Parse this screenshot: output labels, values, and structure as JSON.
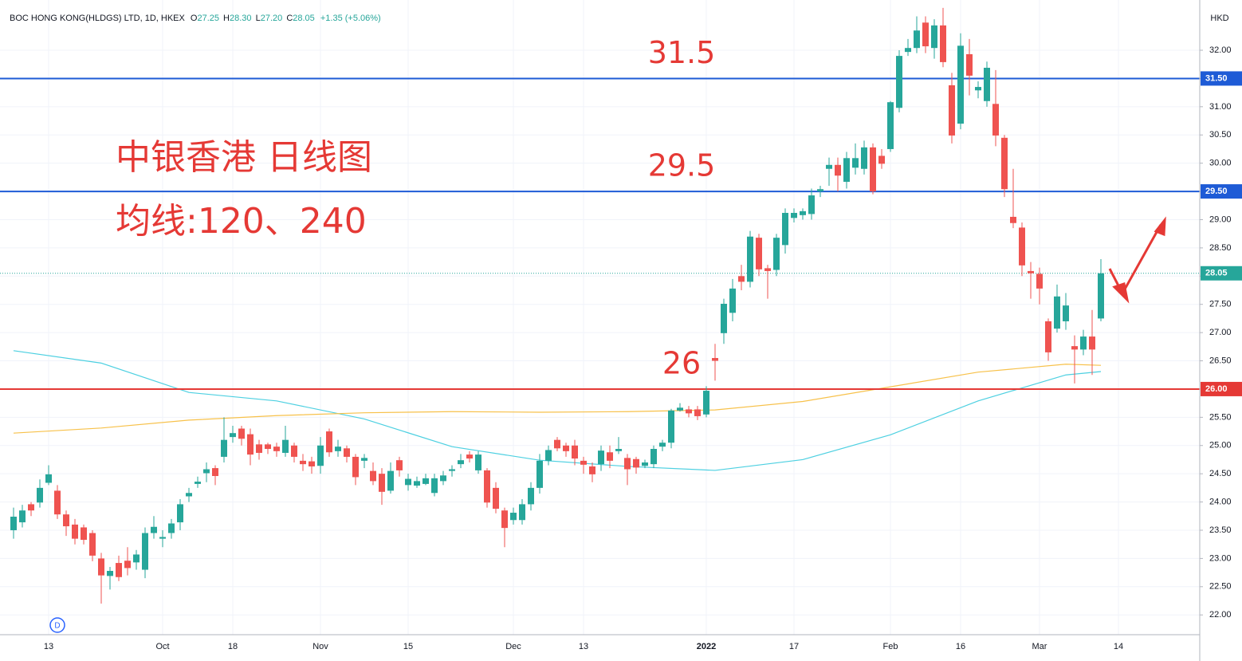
{
  "header": {
    "symbol": "BOC HONG KONG(HLDGS) LTD, 1D, HKEX",
    "fields": [
      {
        "key": "O",
        "value": "27.25"
      },
      {
        "key": "H",
        "value": "28.30"
      },
      {
        "key": "L",
        "value": "27.20"
      },
      {
        "key": "C",
        "value": "28.05"
      }
    ],
    "change": "+1.35 (+5.06%)",
    "currency": "HKD",
    "badge": "D"
  },
  "chart_data": {
    "type": "candlestick",
    "categories": [
      null,
      null,
      null,
      null,
      "13",
      null,
      null,
      null,
      null,
      null,
      null,
      null,
      null,
      null,
      null,
      null,
      null,
      "Oct",
      null,
      null,
      null,
      null,
      null,
      null,
      null,
      "18",
      null,
      null,
      null,
      null,
      null,
      null,
      null,
      null,
      null,
      "Nov",
      null,
      null,
      null,
      null,
      null,
      null,
      null,
      null,
      null,
      "15",
      null,
      null,
      null,
      null,
      null,
      null,
      null,
      null,
      null,
      null,
      null,
      "Dec",
      null,
      null,
      null,
      null,
      null,
      null,
      null,
      "13",
      null,
      null,
      null,
      null,
      null,
      null,
      null,
      null,
      null,
      null,
      null,
      null,
      null,
      "2022",
      null,
      null,
      null,
      null,
      null,
      null,
      null,
      null,
      null,
      "17",
      null,
      null,
      null,
      null,
      null,
      null,
      null,
      null,
      null,
      null,
      "Feb",
      null,
      null,
      null,
      null,
      null,
      null,
      null,
      "16",
      null,
      null,
      null,
      null,
      null,
      null,
      null,
      null,
      "Mar",
      null,
      null,
      null,
      null,
      null,
      null,
      null,
      null,
      "14"
    ],
    "open": [
      23.5,
      23.64,
      23.96,
      23.99,
      24.34,
      24.2,
      23.78,
      23.6,
      23.55,
      23.45,
      23.0,
      22.69,
      22.92,
      22.96,
      22.93,
      22.8,
      23.45,
      23.35,
      23.45,
      23.64,
      24.1,
      24.32,
      24.51,
      24.6,
      24.8,
      25.15,
      25.3,
      25.2,
      25.02,
      25.02,
      24.98,
      24.87,
      25.0,
      24.73,
      24.72,
      24.64,
      25.25,
      24.9,
      24.95,
      24.8,
      24.73,
      24.55,
      24.5,
      24.2,
      24.74,
      24.3,
      24.29,
      24.32,
      24.16,
      24.37,
      24.55,
      24.67,
      24.84,
      24.56,
      24.56,
      24.25,
      23.85,
      23.68,
      23.68,
      23.96,
      24.25,
      24.73,
      25.1,
      25.0,
      25.0,
      24.73,
      24.63,
      24.67,
      24.88,
      24.9,
      24.78,
      24.76,
      24.64,
      24.67,
      24.98,
      25.05,
      25.62,
      25.64,
      25.64,
      25.55,
      26.55,
      26.99,
      27.35,
      28.0,
      27.9,
      28.68,
      28.14,
      28.11,
      28.55,
      29.03,
      29.08,
      29.1,
      29.5,
      29.9,
      29.97,
      29.67,
      29.92,
      29.9,
      30.28,
      30.13,
      30.25,
      30.98,
      31.97,
      32.04,
      32.49,
      32.04,
      32.44,
      31.38,
      30.7,
      31.93,
      31.29,
      31.1,
      31.05,
      30.45,
      29.05,
      28.86,
      28.09,
      28.04,
      27.2,
      27.07,
      27.2,
      26.76,
      26.7,
      26.93,
      27.25,
      null,
      null
    ],
    "high": [
      23.9,
      23.95,
      24.0,
      24.4,
      24.65,
      24.3,
      23.85,
      23.7,
      23.6,
      23.5,
      23.1,
      22.85,
      23.05,
      23.2,
      23.15,
      23.55,
      23.75,
      23.5,
      23.7,
      24.05,
      24.25,
      24.45,
      24.7,
      24.65,
      25.5,
      25.35,
      25.35,
      25.3,
      25.1,
      25.05,
      25.05,
      25.35,
      25.05,
      24.85,
      24.8,
      25.15,
      25.3,
      25.1,
      25.0,
      24.85,
      24.85,
      24.7,
      24.6,
      24.7,
      24.8,
      24.5,
      24.45,
      24.5,
      24.5,
      24.55,
      24.65,
      24.85,
      24.9,
      24.9,
      24.6,
      24.35,
      23.9,
      23.9,
      24.05,
      24.35,
      24.85,
      25.0,
      25.15,
      25.05,
      25.1,
      24.8,
      24.7,
      25.0,
      25.0,
      25.15,
      24.85,
      24.8,
      24.75,
      25.0,
      25.1,
      25.65,
      25.75,
      25.7,
      25.7,
      26.05,
      26.8,
      27.6,
      27.95,
      28.2,
      28.8,
      28.75,
      28.2,
      28.75,
      29.2,
      29.2,
      29.2,
      29.55,
      29.6,
      30.1,
      30.1,
      30.2,
      30.35,
      30.4,
      30.35,
      30.25,
      31.1,
      32.0,
      32.2,
      32.6,
      32.6,
      32.55,
      32.75,
      31.6,
      32.3,
      32.2,
      31.45,
      31.8,
      31.65,
      30.5,
      29.9,
      28.95,
      28.25,
      28.15,
      27.25,
      27.85,
      27.7,
      26.95,
      27.05,
      27.4,
      28.3,
      null,
      null
    ],
    "low": [
      23.35,
      23.55,
      23.75,
      23.9,
      24.3,
      23.7,
      23.4,
      23.25,
      23.25,
      22.95,
      22.2,
      22.45,
      22.6,
      22.7,
      22.8,
      22.65,
      23.35,
      23.2,
      23.35,
      23.5,
      24.0,
      24.25,
      24.35,
      24.3,
      24.7,
      25.05,
      25.0,
      24.65,
      24.75,
      24.85,
      24.8,
      24.8,
      24.7,
      24.55,
      24.5,
      24.5,
      24.8,
      24.8,
      24.7,
      24.3,
      24.6,
      24.3,
      23.95,
      24.15,
      24.45,
      24.2,
      24.25,
      24.3,
      24.1,
      24.3,
      24.45,
      24.6,
      24.7,
      24.5,
      23.9,
      23.8,
      23.2,
      23.6,
      23.6,
      23.85,
      24.15,
      24.65,
      24.9,
      24.8,
      24.65,
      24.5,
      24.35,
      24.55,
      24.6,
      24.85,
      24.3,
      24.5,
      24.6,
      24.6,
      24.9,
      24.95,
      25.6,
      25.5,
      25.45,
      25.5,
      26.15,
      26.8,
      27.2,
      27.75,
      27.8,
      28.0,
      27.6,
      28.0,
      28.4,
      28.95,
      29.0,
      29.0,
      29.4,
      29.6,
      29.5,
      29.55,
      29.8,
      29.8,
      29.45,
      29.9,
      30.2,
      30.9,
      31.9,
      31.95,
      31.95,
      31.85,
      31.7,
      30.35,
      30.6,
      31.2,
      31.15,
      31.0,
      30.3,
      29.4,
      28.85,
      28.0,
      27.6,
      27.5,
      26.5,
      27.0,
      27.05,
      26.1,
      26.6,
      26.25,
      27.2,
      null,
      null
    ],
    "close": [
      23.74,
      23.85,
      23.85,
      24.25,
      24.49,
      23.78,
      23.57,
      23.35,
      23.33,
      23.05,
      22.7,
      22.78,
      22.67,
      22.83,
      23.07,
      23.45,
      23.56,
      23.38,
      23.62,
      23.96,
      24.16,
      24.36,
      24.58,
      24.46,
      25.1,
      25.22,
      25.12,
      24.84,
      24.87,
      24.94,
      24.9,
      25.1,
      24.8,
      24.67,
      24.63,
      25.0,
      24.88,
      24.98,
      24.8,
      24.44,
      24.78,
      24.37,
      24.18,
      24.55,
      24.56,
      24.41,
      24.37,
      24.42,
      24.42,
      24.47,
      24.58,
      24.74,
      24.77,
      24.84,
      23.99,
      23.88,
      23.54,
      23.81,
      23.96,
      24.25,
      24.73,
      24.92,
      24.95,
      24.9,
      24.77,
      24.66,
      24.49,
      24.91,
      24.73,
      24.94,
      24.58,
      24.61,
      24.7,
      24.94,
      25.05,
      25.62,
      25.67,
      25.57,
      25.52,
      25.97,
      26.5,
      27.51,
      27.78,
      27.9,
      28.7,
      28.12,
      28.09,
      28.68,
      29.12,
      29.12,
      29.15,
      29.43,
      29.54,
      29.97,
      29.78,
      30.09,
      30.09,
      30.28,
      29.5,
      29.99,
      31.08,
      31.9,
      32.04,
      32.35,
      32.07,
      32.44,
      31.79,
      30.49,
      32.08,
      31.55,
      31.35,
      31.69,
      30.49,
      29.54,
      28.94,
      28.19,
      28.05,
      27.78,
      26.65,
      27.64,
      27.48,
      26.7,
      26.93,
      26.7,
      28.05,
      null,
      null
    ],
    "up_color": "#26a69a",
    "down_color": "#ef5350",
    "series": [
      {
        "color": "#4dd0e1",
        "x": [
          0,
          10,
          20,
          30,
          40,
          50,
          60,
          70,
          80,
          90,
          100,
          110,
          120,
          124
        ],
        "values": [
          26.68,
          26.46,
          25.94,
          25.79,
          25.47,
          24.98,
          24.74,
          24.63,
          24.56,
          24.75,
          25.19,
          25.79,
          26.25,
          26.31
        ]
      },
      {
        "color": "#f7c14a",
        "x": [
          0,
          10,
          20,
          30,
          40,
          50,
          60,
          70,
          80,
          90,
          100,
          110,
          120,
          124
        ],
        "values": [
          25.22,
          25.31,
          25.45,
          25.53,
          25.58,
          25.6,
          25.59,
          25.6,
          25.63,
          25.78,
          26.04,
          26.3,
          26.44,
          26.42
        ]
      }
    ],
    "ylim": [
      21.65,
      32.89
    ],
    "yticks": [
      {
        "value": 22,
        "label": "22.00"
      },
      {
        "value": 22.5,
        "label": "22.50"
      },
      {
        "value": 23,
        "label": "23.00"
      },
      {
        "value": 23.5,
        "label": "23.50"
      },
      {
        "value": 24,
        "label": "24.00"
      },
      {
        "value": 24.5,
        "label": "24.50"
      },
      {
        "value": 25,
        "label": "25.00"
      },
      {
        "value": 25.5,
        "label": "25.50"
      },
      {
        "value": 26,
        "label": "26.00"
      },
      {
        "value": 26.5,
        "label": "26.50"
      },
      {
        "value": 27,
        "label": "27.00"
      },
      {
        "value": 27.5,
        "label": "27.50"
      },
      {
        "value": 28,
        "label": "28.00"
      },
      {
        "value": 28.5,
        "label": "28.50"
      },
      {
        "value": 29,
        "label": "29.00"
      },
      {
        "value": 29.5,
        "label": "29.50"
      },
      {
        "value": 30,
        "label": "30.00"
      },
      {
        "value": 30.5,
        "label": "30.50"
      },
      {
        "value": 31,
        "label": "31.00"
      },
      {
        "value": 31.5,
        "label": "31.50"
      },
      {
        "value": 32,
        "label": "32.00"
      }
    ],
    "grid": true,
    "hlines": [
      {
        "value": 31.5,
        "axis_label": "31.50",
        "note": "31.5",
        "color": "#1e5bd6"
      },
      {
        "value": 29.5,
        "axis_label": "29.50",
        "note": "29.5",
        "color": "#1e5bd6"
      },
      {
        "value": 26,
        "axis_label": "26.00",
        "note": "26",
        "color": "#e53935"
      }
    ],
    "last_price": {
      "value": 28.05,
      "label": "28.05",
      "color": "#26a69a"
    },
    "annotations": [
      "中银香港 日线图",
      "均线:120、240"
    ],
    "annotation_color": "#e53935"
  }
}
